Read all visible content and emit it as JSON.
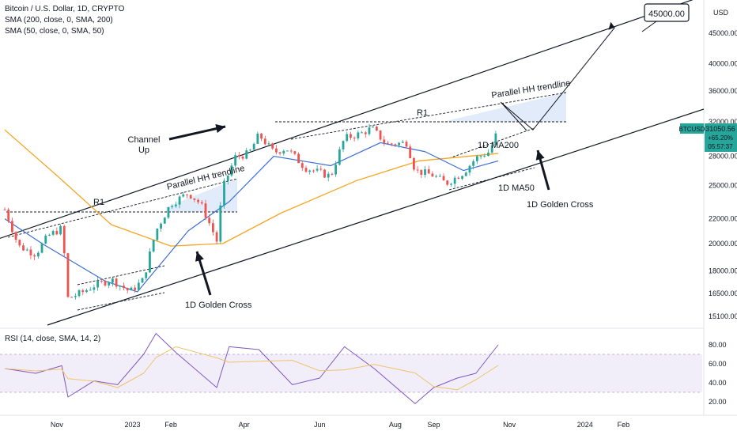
{
  "header": {
    "symbol_title": "Bitcoin / U.S. Dollar, 1D, CRYPTO",
    "indicator_1": "SMA (200, close, 0, SMA, 200)",
    "indicator_2": "SMA (50, close, 0, SMA, 50)",
    "rsi_label": "RSI (14, close, SMA, 14, 2)",
    "currency": "USD"
  },
  "price_tag": {
    "symbol": "BTCUSD",
    "price": "31050.56",
    "change": "+65.20%",
    "countdown": "05:57:37"
  },
  "target_box": "45000.00",
  "annotations": {
    "channel_up": "Channel Up",
    "r1_left": "R1",
    "r1_right": "R1",
    "parallel_left": "Parallel HH trendline",
    "parallel_right": "Parallel HH trendline",
    "golden_cross_left": "1D Golden Cross",
    "golden_cross_right": "1D Golden Cross",
    "ma200_label": "1D MA200",
    "ma50_label": "1D MA50"
  },
  "colors": {
    "up": "#26a69a",
    "down": "#ef5350",
    "ma200": "#f5a623",
    "ma50": "#3b6fd8",
    "rsi": "#7e57c2",
    "rsi_ma": "#f0c36b",
    "price_tag": "#26a69a",
    "fill": "#dbe6f8"
  },
  "chart_data": {
    "type": "line",
    "title": "Bitcoin / U.S. Dollar, 1D, CRYPTO",
    "y_axis_ticks": [
      "45000.00",
      "40000.00",
      "36000.00",
      "32000.00",
      "28000.00",
      "25000.00",
      "22000.00",
      "20000.00",
      "18000.00",
      "16500.00",
      "15100.00"
    ],
    "x_axis_ticks": [
      "Nov",
      "2023",
      "Feb",
      "Apr",
      "Jun",
      "Aug",
      "Sep",
      "Nov",
      "2024",
      "Feb"
    ],
    "rsi_ticks": [
      "80.00",
      "60.00",
      "40.00",
      "20.00"
    ],
    "ylim": [
      14500,
      50000
    ],
    "log_scale": true,
    "price_series": {
      "name": "BTCUSD",
      "points": [
        [
          "2022-09-20",
          22800
        ],
        [
          "2022-10-01",
          19800
        ],
        [
          "2022-10-15",
          19200
        ],
        [
          "2022-10-25",
          20600
        ],
        [
          "2022-11-05",
          21200
        ],
        [
          "2022-11-10",
          16200
        ],
        [
          "2022-11-20",
          16500
        ],
        [
          "2022-12-01",
          17000
        ],
        [
          "2022-12-15",
          17400
        ],
        [
          "2022-12-30",
          16600
        ],
        [
          "2023-01-10",
          17400
        ],
        [
          "2023-01-20",
          21000
        ],
        [
          "2023-02-01",
          23300
        ],
        [
          "2023-02-15",
          24300
        ],
        [
          "2023-02-25",
          23300
        ],
        [
          "2023-03-10",
          20200
        ],
        [
          "2023-03-15",
          24800
        ],
        [
          "2023-03-25",
          27900
        ],
        [
          "2023-04-05",
          28300
        ],
        [
          "2023-04-13",
          30400
        ],
        [
          "2023-04-25",
          28400
        ],
        [
          "2023-05-05",
          28900
        ],
        [
          "2023-05-20",
          26800
        ],
        [
          "2023-06-10",
          25900
        ],
        [
          "2023-06-21",
          30000
        ],
        [
          "2023-07-05",
          30600
        ],
        [
          "2023-07-13",
          31200
        ],
        [
          "2023-07-25",
          29300
        ],
        [
          "2023-08-10",
          29500
        ],
        [
          "2023-08-17",
          26500
        ],
        [
          "2023-09-01",
          26000
        ],
        [
          "2023-09-11",
          25200
        ],
        [
          "2023-09-25",
          26300
        ],
        [
          "2023-10-05",
          27800
        ],
        [
          "2023-10-16",
          28500
        ],
        [
          "2023-10-23",
          31050
        ]
      ]
    },
    "series": [
      {
        "name": "SMA 200",
        "points": [
          [
            "2022-09-20",
            31000
          ],
          [
            "2022-11-01",
            26000
          ],
          [
            "2022-12-15",
            21500
          ],
          [
            "2023-02-01",
            19800
          ],
          [
            "2023-03-15",
            20000
          ],
          [
            "2023-05-01",
            22500
          ],
          [
            "2023-07-01",
            25500
          ],
          [
            "2023-08-20",
            27500
          ],
          [
            "2023-10-23",
            28300
          ]
        ]
      },
      {
        "name": "SMA 50",
        "points": [
          [
            "2022-09-20",
            22000
          ],
          [
            "2022-10-20",
            20000
          ],
          [
            "2022-12-10",
            17300
          ],
          [
            "2023-01-05",
            16600
          ],
          [
            "2023-02-15",
            21000
          ],
          [
            "2023-03-20",
            23500
          ],
          [
            "2023-04-25",
            28000
          ],
          [
            "2023-06-10",
            27000
          ],
          [
            "2023-07-20",
            29500
          ],
          [
            "2023-08-25",
            28500
          ],
          [
            "2023-09-25",
            26500
          ],
          [
            "2023-10-23",
            27500
          ]
        ]
      }
    ],
    "projection": [
      [
        "2023-10-25",
        34500
      ],
      [
        "2023-11-20",
        31000
      ],
      [
        "2024-01-25",
        46000
      ]
    ],
    "rsi": {
      "name": "RSI 14",
      "ylim": [
        15,
        90
      ],
      "band": [
        30,
        70
      ],
      "points": [
        [
          "2022-09-20",
          55
        ],
        [
          "2022-10-15",
          50
        ],
        [
          "2022-11-05",
          58
        ],
        [
          "2022-11-10",
          25
        ],
        [
          "2022-12-01",
          42
        ],
        [
          "2022-12-20",
          38
        ],
        [
          "2023-01-10",
          70
        ],
        [
          "2023-01-20",
          92
        ],
        [
          "2023-02-05",
          72
        ],
        [
          "2023-03-10",
          35
        ],
        [
          "2023-03-20",
          78
        ],
        [
          "2023-04-13",
          75
        ],
        [
          "2023-05-10",
          38
        ],
        [
          "2023-06-01",
          45
        ],
        [
          "2023-06-21",
          78
        ],
        [
          "2023-07-15",
          55
        ],
        [
          "2023-08-17",
          18
        ],
        [
          "2023-09-01",
          35
        ],
        [
          "2023-09-20",
          45
        ],
        [
          "2023-10-05",
          50
        ],
        [
          "2023-10-23",
          80
        ]
      ]
    }
  }
}
